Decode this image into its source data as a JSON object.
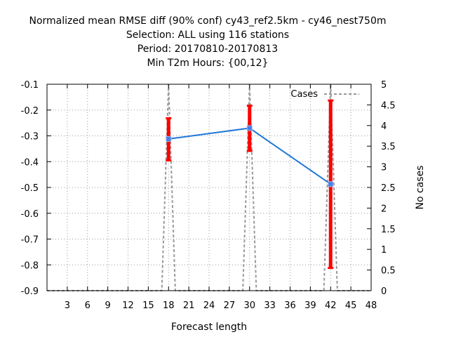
{
  "chart_data": {
    "type": "line",
    "title_lines": [
      "Normalized mean RMSE diff (90% conf) cy43_ref2.5km - cy46_nest750m",
      "Selection: ALL using   116 stations",
      "Period: 20170810-20170813",
      "Min T2m   Hours: {00,12}"
    ],
    "xlabel": "Forecast length",
    "ylabel": "",
    "y2label": "No cases",
    "xlim": [
      0,
      48
    ],
    "ylim": [
      -0.9,
      -0.1
    ],
    "y2lim": [
      0,
      5
    ],
    "x_ticks": [
      "3",
      "6",
      "9",
      "12",
      "15",
      "18",
      "21",
      "24",
      "27",
      "30",
      "33",
      "36",
      "39",
      "42",
      "45",
      "48"
    ],
    "y_ticks": [
      "-0.1",
      "-0.2",
      "-0.3",
      "-0.4",
      "-0.5",
      "-0.6",
      "-0.7",
      "-0.8",
      "-0.9"
    ],
    "y2_ticks": [
      "5",
      "4.5",
      "4",
      "3.5",
      "3",
      "2.5",
      "2",
      "1.5",
      "1",
      "0.5",
      "0"
    ],
    "grid": true,
    "legend_position": "top-right",
    "series": [
      {
        "color": "#1f78d8",
        "x": [
          18,
          30,
          42
        ],
        "y": [
          -0.312,
          -0.27,
          -0.487
        ],
        "ci_low": [
          -0.395,
          -0.358,
          -0.812
        ],
        "ci_high": [
          -0.232,
          -0.183,
          -0.163
        ],
        "ci_color": "#ff0000"
      },
      {
        "name": "Cases",
        "color": "#999999",
        "dash": true,
        "axis": "right",
        "x": [
          0,
          17,
          18,
          19,
          29,
          30,
          31,
          41,
          42,
          43,
          48
        ],
        "y": [
          0,
          0,
          5,
          0,
          0,
          5,
          0,
          0,
          5,
          0,
          0
        ]
      }
    ]
  }
}
